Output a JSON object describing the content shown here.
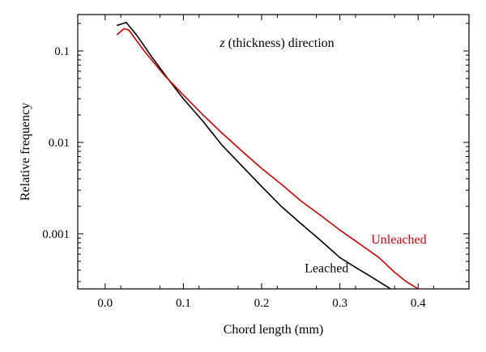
{
  "chart_data": {
    "type": "line",
    "title": "",
    "xlabel": "Chord length (mm)",
    "ylabel": "Relative frequency",
    "yscale": "log",
    "xlim": [
      -0.035,
      0.465
    ],
    "ylim": [
      0.00025,
      0.25
    ],
    "xticks": [
      {
        "value": 0.0,
        "label": "0.0"
      },
      {
        "value": 0.1,
        "label": "0.1"
      },
      {
        "value": 0.2,
        "label": "0.2"
      },
      {
        "value": 0.3,
        "label": "0.3"
      },
      {
        "value": 0.4,
        "label": "0.4"
      }
    ],
    "yticks": [
      {
        "value": 0.1,
        "label": "0.1"
      },
      {
        "value": 0.01,
        "label": "0.01"
      },
      {
        "value": 0.001,
        "label": "0.001"
      }
    ],
    "annotation": "z (thickness) direction",
    "annotation_italic_part": "z",
    "annotation_rest": " (thickness) direction",
    "grid": false,
    "legend": "inline labels",
    "series": [
      {
        "name": "Leached",
        "color": "#000000",
        "x": [
          0.015,
          0.027,
          0.04,
          0.06,
          0.08,
          0.1,
          0.125,
          0.15,
          0.175,
          0.2,
          0.225,
          0.25,
          0.275,
          0.3,
          0.32,
          0.335,
          0.35,
          0.365
        ],
        "y": [
          0.19,
          0.205,
          0.15,
          0.085,
          0.05,
          0.03,
          0.017,
          0.0092,
          0.0055,
          0.0033,
          0.002,
          0.0013,
          0.00085,
          0.00055,
          0.00043,
          0.00036,
          0.0003,
          0.00025
        ]
      },
      {
        "name": "Unleached",
        "color": "#cc0000",
        "x": [
          0.015,
          0.024,
          0.03,
          0.05,
          0.075,
          0.1,
          0.125,
          0.15,
          0.175,
          0.2,
          0.225,
          0.25,
          0.275,
          0.3,
          0.325,
          0.35,
          0.37,
          0.385,
          0.4
        ],
        "y": [
          0.15,
          0.175,
          0.17,
          0.1,
          0.055,
          0.033,
          0.02,
          0.0125,
          0.008,
          0.0052,
          0.0035,
          0.0023,
          0.0016,
          0.0011,
          0.00078,
          0.00055,
          0.00038,
          0.0003,
          0.00025
        ]
      }
    ],
    "series_labels": [
      {
        "series": "Leached",
        "text": "Leached",
        "at_x": 0.255,
        "at_y": 0.00038,
        "color": "#000000"
      },
      {
        "series": "Unleached",
        "text": "Unleached",
        "at_x": 0.34,
        "at_y": 0.00078,
        "color": "#cc0000"
      }
    ]
  }
}
